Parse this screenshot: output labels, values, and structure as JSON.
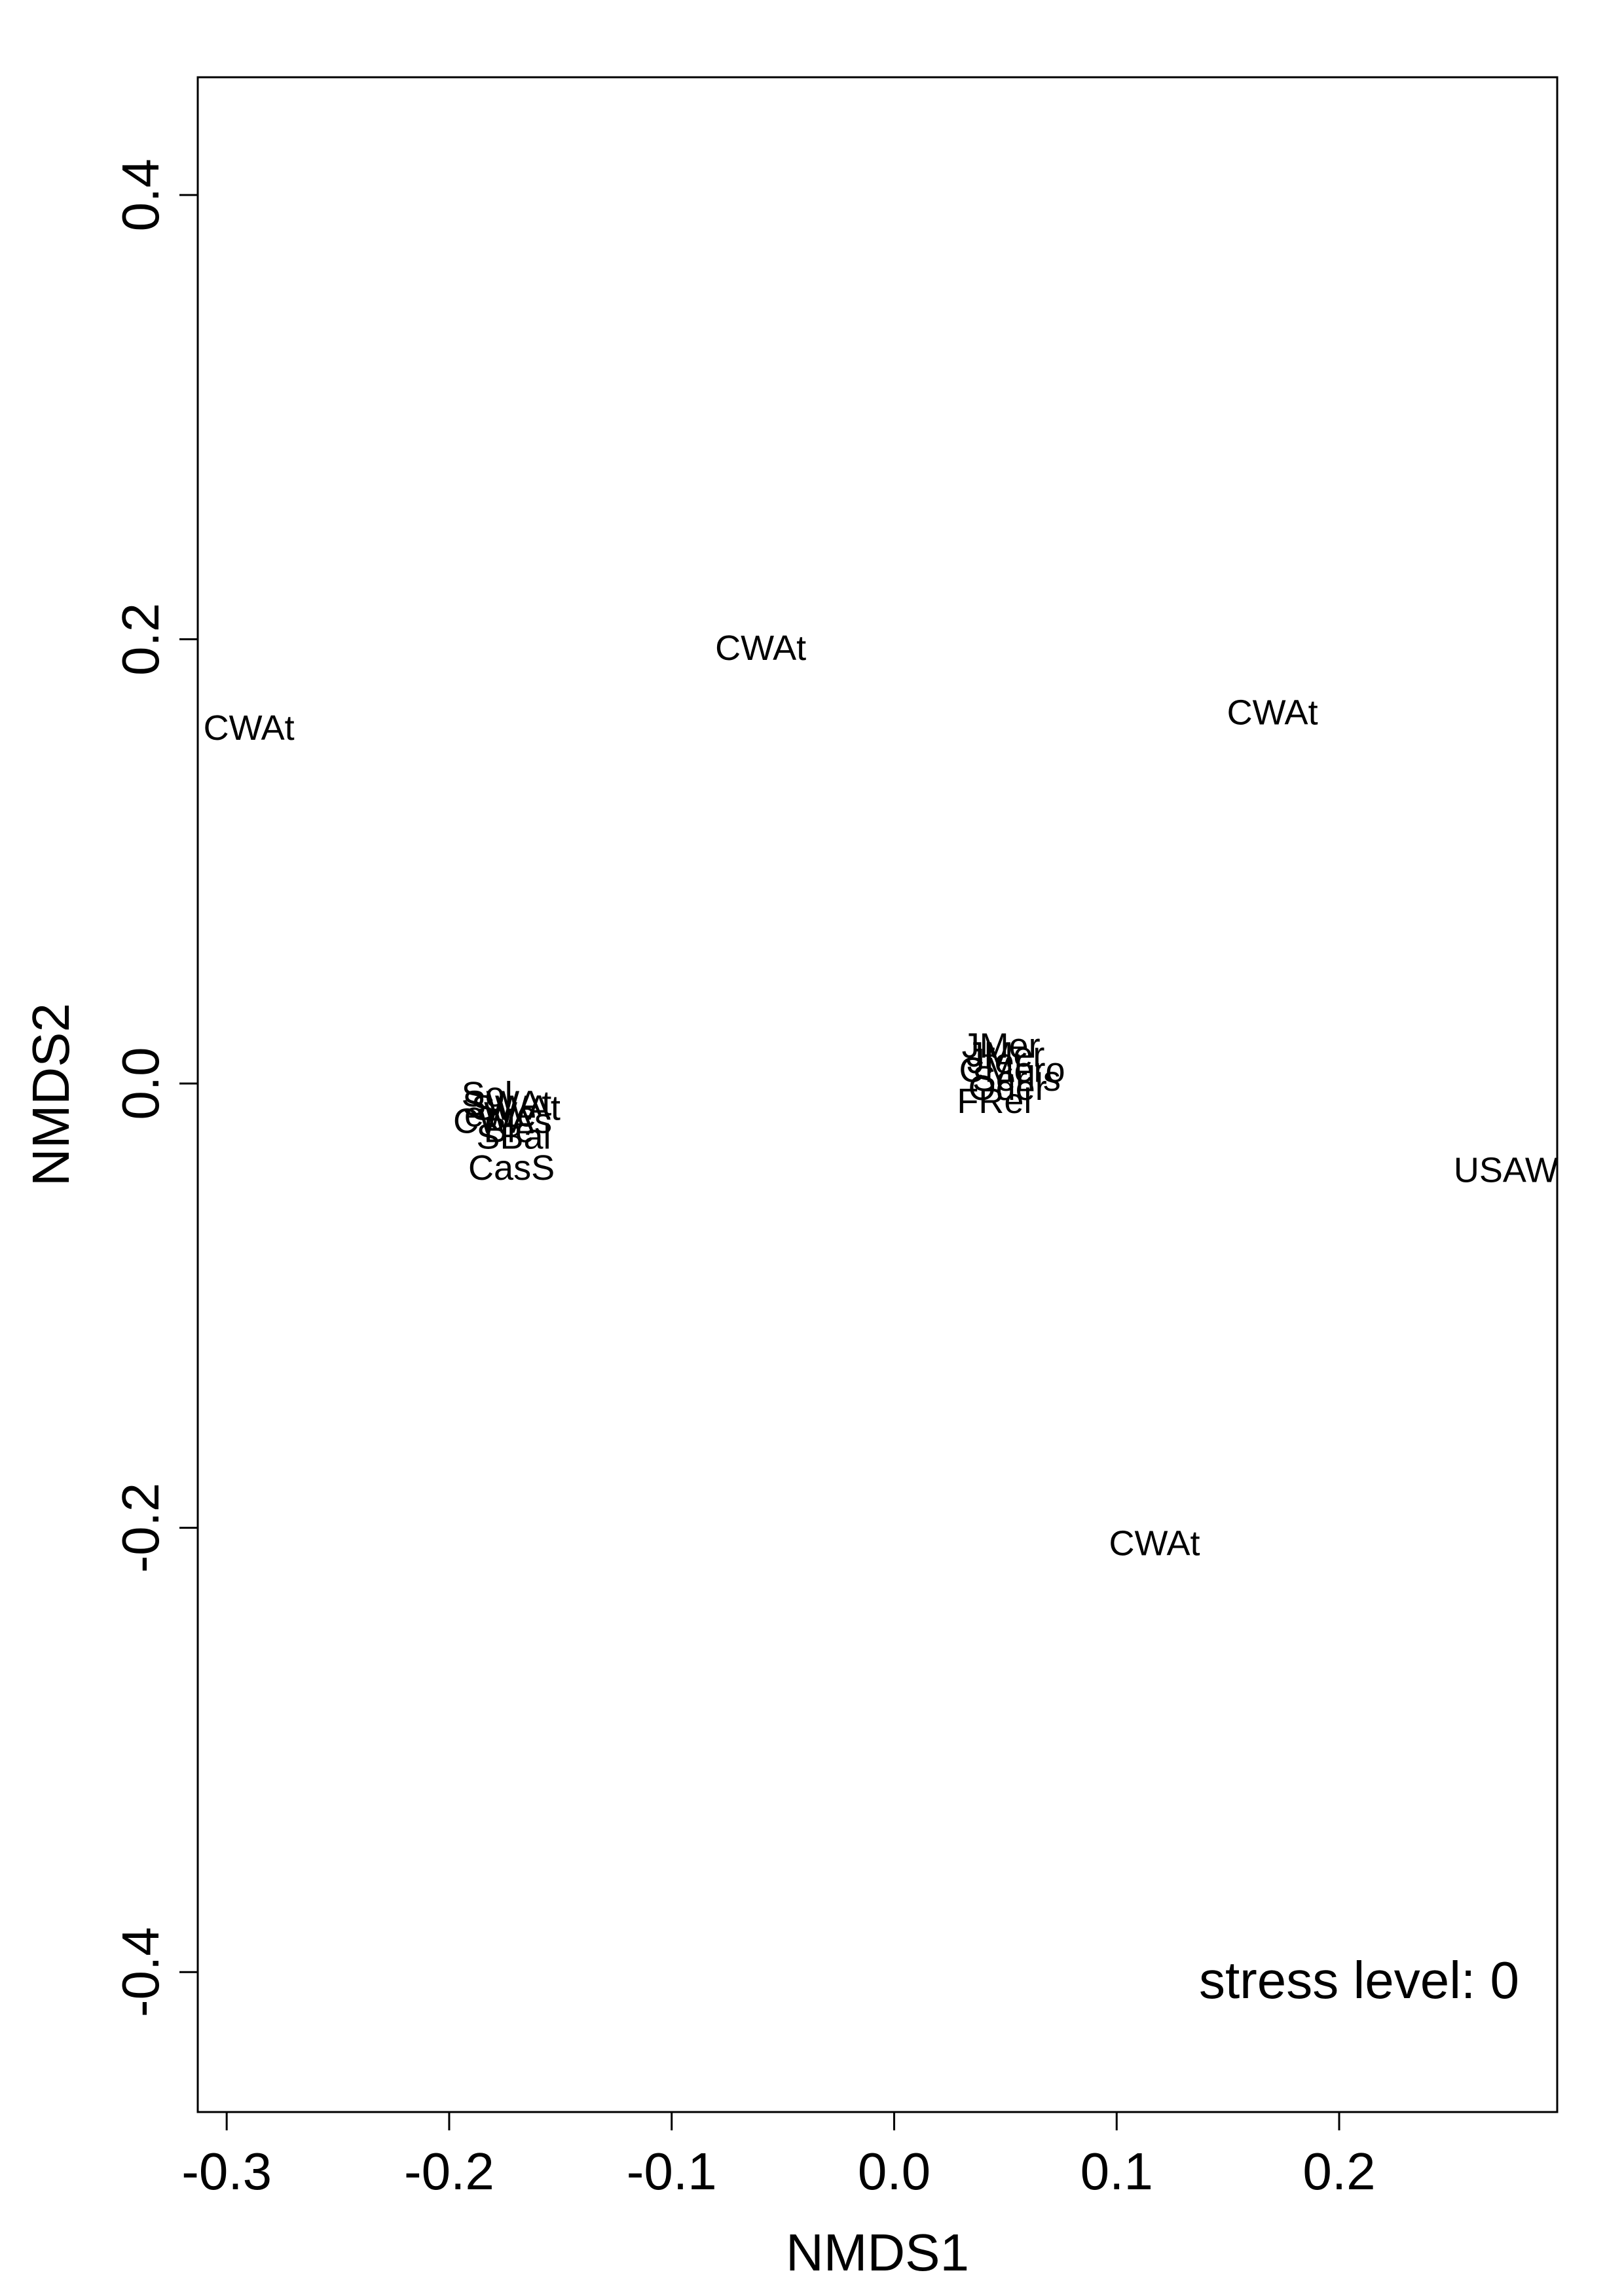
{
  "chart_data": {
    "type": "scatter",
    "title": "",
    "xlabel": "NMDS1",
    "ylabel": "NMDS2",
    "xlim": [
      -0.313,
      0.298
    ],
    "ylim": [
      -0.463,
      0.453
    ],
    "xticks": [
      -0.3,
      -0.2,
      -0.1,
      0.0,
      0.1,
      0.2
    ],
    "xtick_labels": [
      "-0.3",
      "-0.2",
      "-0.1",
      "0.0",
      "0.1",
      "0.2"
    ],
    "yticks": [
      -0.4,
      -0.2,
      0.0,
      0.2,
      0.4
    ],
    "ytick_labels": [
      "-0.4",
      "-0.2",
      "0.0",
      "0.2",
      "0.4"
    ],
    "grid": false,
    "annotation": "stress level: 0",
    "points": [
      {
        "label": "CWAt",
        "x": -0.29,
        "y": 0.16
      },
      {
        "label": "CWAt",
        "x": -0.06,
        "y": 0.196
      },
      {
        "label": "CWAt",
        "x": 0.17,
        "y": 0.167
      },
      {
        "label": "CWAt",
        "x": 0.117,
        "y": -0.207
      },
      {
        "label": "USAW",
        "x": 0.275,
        "y": -0.039
      },
      {
        "label": "Sol",
        "x": -0.183,
        "y": -0.005
      },
      {
        "label": "SWAt",
        "x": -0.174,
        "y": -0.009
      },
      {
        "label": "SWAt",
        "x": -0.17,
        "y": -0.011
      },
      {
        "label": "eWe",
        "x": -0.177,
        "y": -0.014
      },
      {
        "label": "CWAs",
        "x": -0.176,
        "y": -0.017
      },
      {
        "label": "Ble",
        "x": -0.173,
        "y": -0.021
      },
      {
        "label": "SBal",
        "x": -0.171,
        "y": -0.024
      },
      {
        "label": "CasS",
        "x": -0.172,
        "y": -0.038
      },
      {
        "label": "JMer",
        "x": 0.048,
        "y": 0.017
      },
      {
        "label": "JMer",
        "x": 0.05,
        "y": 0.013
      },
      {
        "label": "Jfer",
        "x": 0.046,
        "y": 0.01
      },
      {
        "label": "CMero",
        "x": 0.053,
        "y": 0.006
      },
      {
        "label": "Serlis",
        "x": 0.055,
        "y": 0.002
      },
      {
        "label": "Oder",
        "x": 0.051,
        "y": -0.002
      },
      {
        "label": "FRel",
        "x": 0.045,
        "y": -0.008
      }
    ]
  }
}
